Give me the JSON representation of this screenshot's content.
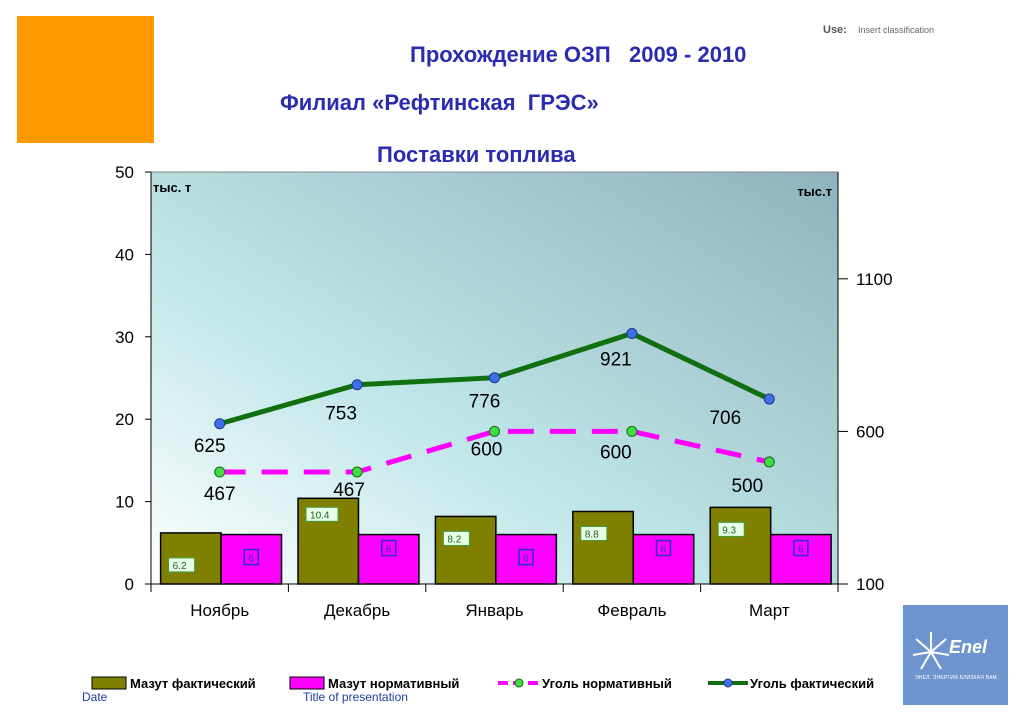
{
  "header": {
    "use_label": "Use:",
    "use_value": "Insert classification",
    "title_line1": "Прохождение ОЗП   2009 - 2010",
    "title_line2": "Филиал «Рефтинская  ГРЭС»",
    "title_line3": "Поставки топлива"
  },
  "footer": {
    "date": "Date",
    "presentation": "Title of presentation"
  },
  "logo": {
    "name": "Enel",
    "subtitle": "ЭНЕЛ. ЭНЕРГИЯ БЛИЗКАЯ ВАМ"
  },
  "colors": {
    "orange_block": "#ff9900",
    "title": "#2b2bb0",
    "mazut_fact": "#808000",
    "mazut_norm": "#ff00ff",
    "coal_norm": "#ff00ff",
    "coal_fact": "#107010",
    "logo_bg": "#6f95d1"
  },
  "chart_data": {
    "type": "bar",
    "categories": [
      "Ноябрь",
      "Декабрь",
      "Январь",
      "Февраль",
      "Март"
    ],
    "left_unit": "тыс. т",
    "right_unit": "тыс.т",
    "yticks_left": [
      "0",
      "10",
      "20",
      "30",
      "40",
      "50"
    ],
    "ylim_left": [
      0,
      50
    ],
    "yticks_right": [
      "100",
      "600",
      "1100"
    ],
    "ylim_right": [
      100,
      1450
    ],
    "series": [
      {
        "name": "Мазут фактический",
        "type": "bar",
        "axis": "left",
        "values": [
          6.2,
          10.4,
          8.2,
          8.8,
          9.3
        ],
        "labels": [
          "6.2",
          "10.4",
          "8.2",
          "8.8",
          "9.3"
        ]
      },
      {
        "name": "Мазут нормативный",
        "type": "bar",
        "axis": "left",
        "values": [
          6,
          6,
          6,
          6,
          6
        ],
        "labels": [
          "6",
          "6",
          "6",
          "6",
          "6"
        ]
      },
      {
        "name": "Уголь нормативный",
        "type": "line",
        "style": "dashed",
        "axis": "right",
        "values": [
          467,
          467,
          600,
          600,
          500
        ],
        "labels": [
          "467",
          "467",
          "600",
          "600",
          "500"
        ]
      },
      {
        "name": "Уголь фактический",
        "type": "line",
        "axis": "right",
        "values": [
          625,
          753,
          776,
          921,
          706
        ],
        "labels": [
          "625",
          "753",
          "776",
          "921",
          "706"
        ]
      }
    ],
    "legend": "bottom"
  }
}
